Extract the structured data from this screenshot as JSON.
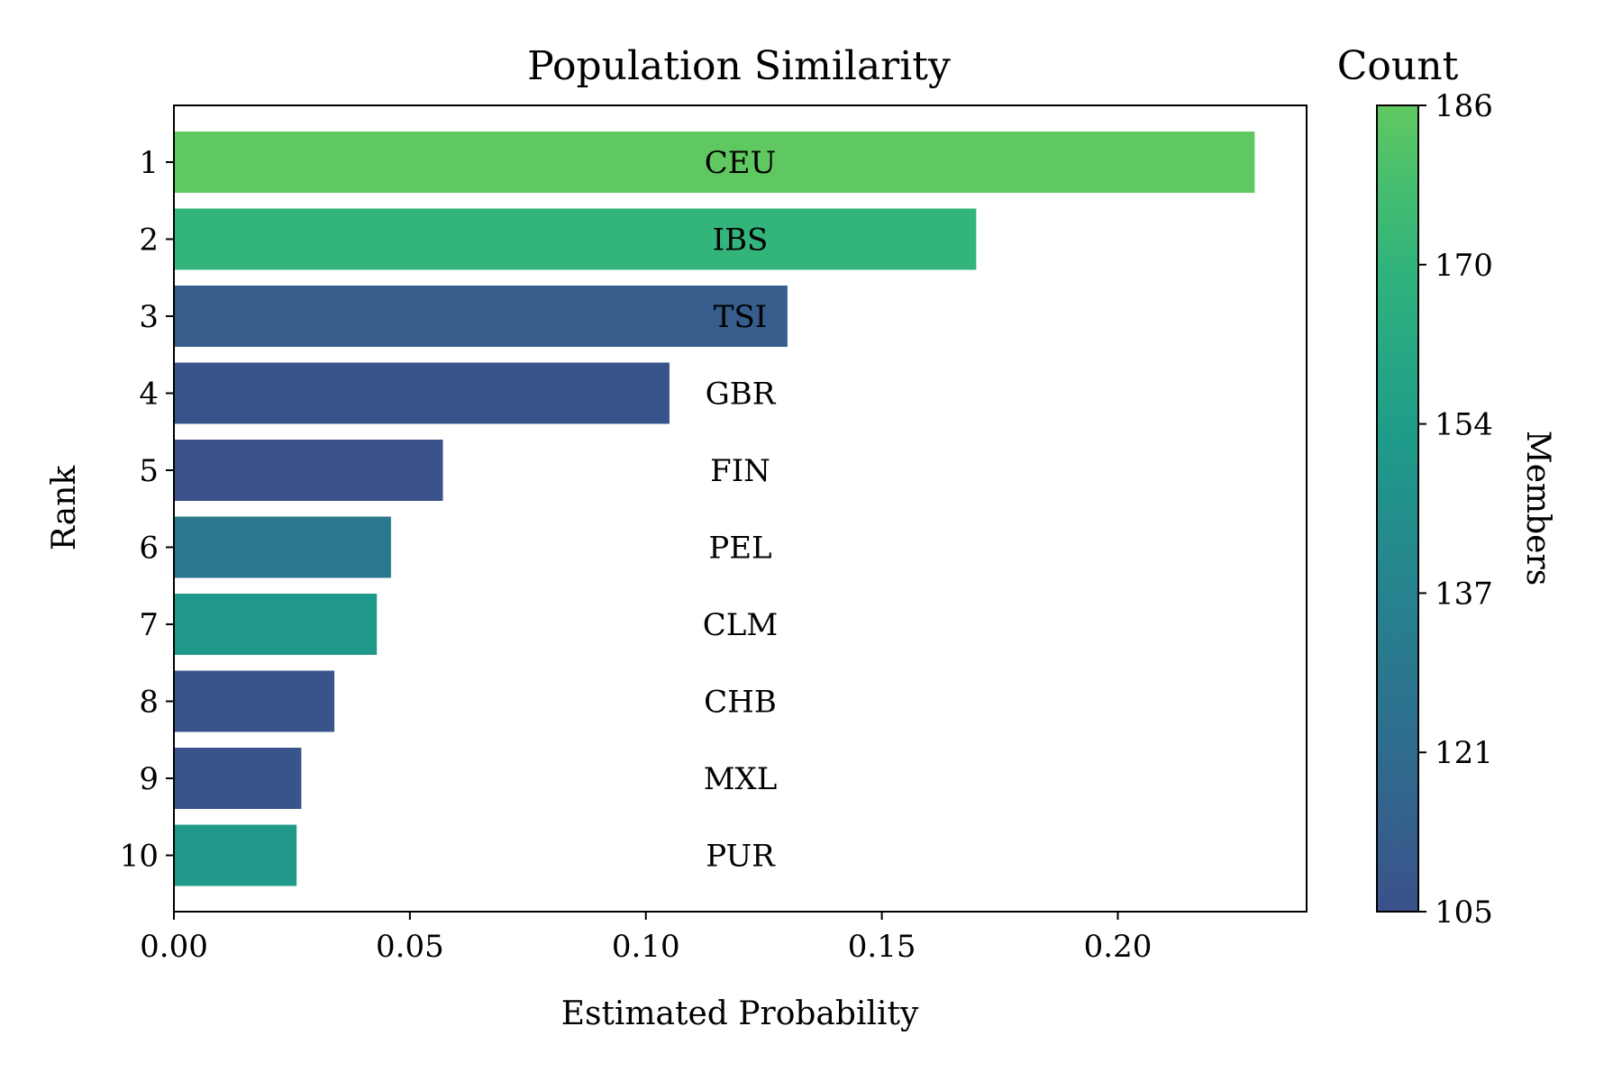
{
  "chart_data": {
    "type": "bar",
    "orientation": "horizontal",
    "title": "Population Similarity",
    "xlabel": "Estimated Probability",
    "ylabel": "Rank",
    "xlim": [
      0,
      0.24
    ],
    "xticks": [
      "0.00",
      "0.05",
      "0.10",
      "0.15",
      "0.20"
    ],
    "xtick_values": [
      0,
      0.05,
      0.1,
      0.15,
      0.2
    ],
    "categories": [
      "1",
      "2",
      "3",
      "4",
      "5",
      "6",
      "7",
      "8",
      "9",
      "10"
    ],
    "bar_labels": [
      "CEU",
      "IBS",
      "TSI",
      "GBR",
      "FIN",
      "PEL",
      "CLM",
      "CHB",
      "MXL",
      "PUR"
    ],
    "values": [
      0.229,
      0.17,
      0.13,
      0.105,
      0.057,
      0.046,
      0.043,
      0.034,
      0.027,
      0.026
    ],
    "counts": [
      186,
      170,
      112,
      107,
      105,
      130,
      151,
      107,
      107,
      151
    ],
    "grid": false,
    "colorbar": {
      "title": "Count",
      "label": "Members",
      "colormap": "viridis",
      "range": [
        105,
        186
      ],
      "ticks": [
        "105",
        "121",
        "137",
        "154",
        "170",
        "186"
      ],
      "tick_values": [
        105,
        121,
        137,
        154,
        170,
        186
      ]
    }
  }
}
